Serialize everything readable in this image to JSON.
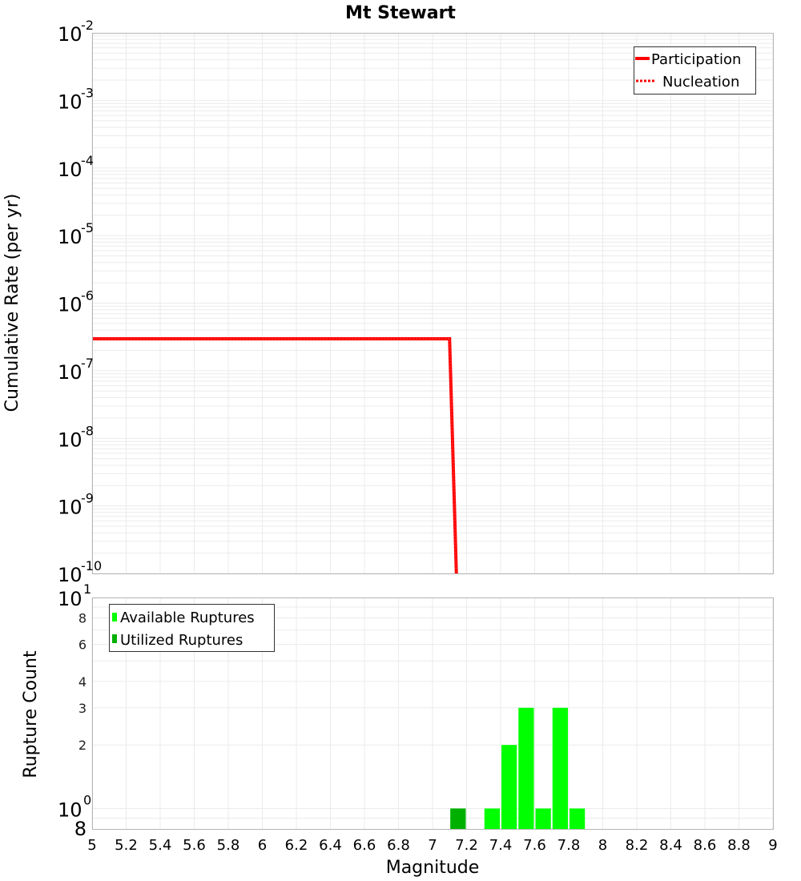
{
  "title": "Mt Stewart",
  "colors": {
    "participation": "#ff0000",
    "nucleation": "#ff0000",
    "available": "#00ff00",
    "utilized": "#00b000",
    "grid": "#ebebeb",
    "frame": "#b4b4b4"
  },
  "top_plot": {
    "ylabel": "Cumulative Rate (per yr)",
    "y_ticks": [
      {
        "base": "10",
        "exp": "-2"
      },
      {
        "base": "10",
        "exp": "-3"
      },
      {
        "base": "10",
        "exp": "-4"
      },
      {
        "base": "10",
        "exp": "-5"
      },
      {
        "base": "10",
        "exp": "-6"
      },
      {
        "base": "10",
        "exp": "-7"
      },
      {
        "base": "10",
        "exp": "-8"
      },
      {
        "base": "10",
        "exp": "-9"
      },
      {
        "base": "10",
        "exp": "-10"
      }
    ],
    "legend": [
      {
        "label": "Participation",
        "style": "solid"
      },
      {
        "label": "Nucleation",
        "style": "dotted"
      }
    ]
  },
  "bottom_plot": {
    "ylabel": "Rupture Count",
    "y_ticks_major": [
      {
        "base": "10",
        "exp": "1"
      },
      {
        "base": "10",
        "exp": "0"
      }
    ],
    "y_ticks_minor": [
      "8",
      "6",
      "4",
      "3",
      "2",
      "8"
    ],
    "legend": [
      {
        "label": "Available Ruptures"
      },
      {
        "label": "Utilized Ruptures"
      }
    ]
  },
  "x_axis": {
    "label": "Magnitude",
    "ticks": [
      "5",
      "5.2",
      "5.4",
      "5.6",
      "5.8",
      "6",
      "6.2",
      "6.4",
      "6.6",
      "6.8",
      "7",
      "7.2",
      "7.4",
      "7.6",
      "7.8",
      "8",
      "8.2",
      "8.4",
      "8.6",
      "8.8",
      "9"
    ]
  },
  "chart_data": [
    {
      "type": "line",
      "title": "Mt Stewart",
      "xlabel": "Magnitude",
      "ylabel": "Cumulative Rate (per yr)",
      "xlim": [
        5,
        9
      ],
      "ylim": [
        1e-10,
        0.01
      ],
      "yscale": "log",
      "grid": true,
      "legend_position": "top-right",
      "series": [
        {
          "name": "Participation",
          "style": "solid",
          "x": [
            5.0,
            7.1,
            7.14
          ],
          "y": [
            2.97e-07,
            2.97e-07,
            1e-10
          ]
        },
        {
          "name": "Nucleation",
          "style": "dotted",
          "x": [
            5.0,
            7.1,
            7.14
          ],
          "y": [
            2.97e-07,
            2.97e-07,
            1e-10
          ]
        }
      ]
    },
    {
      "type": "bar",
      "xlabel": "Magnitude",
      "ylabel": "Rupture Count",
      "xlim": [
        5,
        9
      ],
      "ylim": [
        0.8,
        10
      ],
      "yscale": "log",
      "grid": true,
      "legend_position": "top-left",
      "bin_width": 0.1,
      "series": [
        {
          "name": "Available Ruptures",
          "x": [
            7.15,
            7.35,
            7.45,
            7.55,
            7.65,
            7.75,
            7.85
          ],
          "values": [
            1,
            1,
            2,
            3,
            1,
            3,
            1
          ]
        },
        {
          "name": "Utilized Ruptures",
          "x": [
            7.15
          ],
          "values": [
            1
          ]
        }
      ]
    }
  ]
}
